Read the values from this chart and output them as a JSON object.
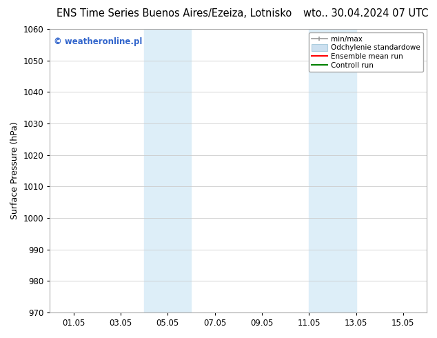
{
  "title_left": "ENS Time Series Buenos Aires/Ezeiza, Lotnisko",
  "title_right": "wto.. 30.04.2024 07 UTC",
  "ylabel": "Surface Pressure (hPa)",
  "ylim": [
    970,
    1060
  ],
  "yticks": [
    970,
    980,
    990,
    1000,
    1010,
    1020,
    1030,
    1040,
    1050,
    1060
  ],
  "xtick_labels": [
    "01.05",
    "03.05",
    "05.05",
    "07.05",
    "09.05",
    "11.05",
    "13.05",
    "15.05"
  ],
  "xtick_positions": [
    1,
    3,
    5,
    7,
    9,
    11,
    13,
    15
  ],
  "xlim": [
    0,
    16
  ],
  "shaded_regions": [
    {
      "xmin": 4.0,
      "xmax": 6.0,
      "color": "#ddeef8"
    },
    {
      "xmin": 11.0,
      "xmax": 13.0,
      "color": "#ddeef8"
    }
  ],
  "watermark_text": "© weatheronline.pl",
  "watermark_color": "#3366cc",
  "bg_color": "#ffffff",
  "plot_bg_color": "#ffffff",
  "grid_color": "#cccccc",
  "title_fontsize": 10.5,
  "tick_fontsize": 8.5,
  "ylabel_fontsize": 9
}
